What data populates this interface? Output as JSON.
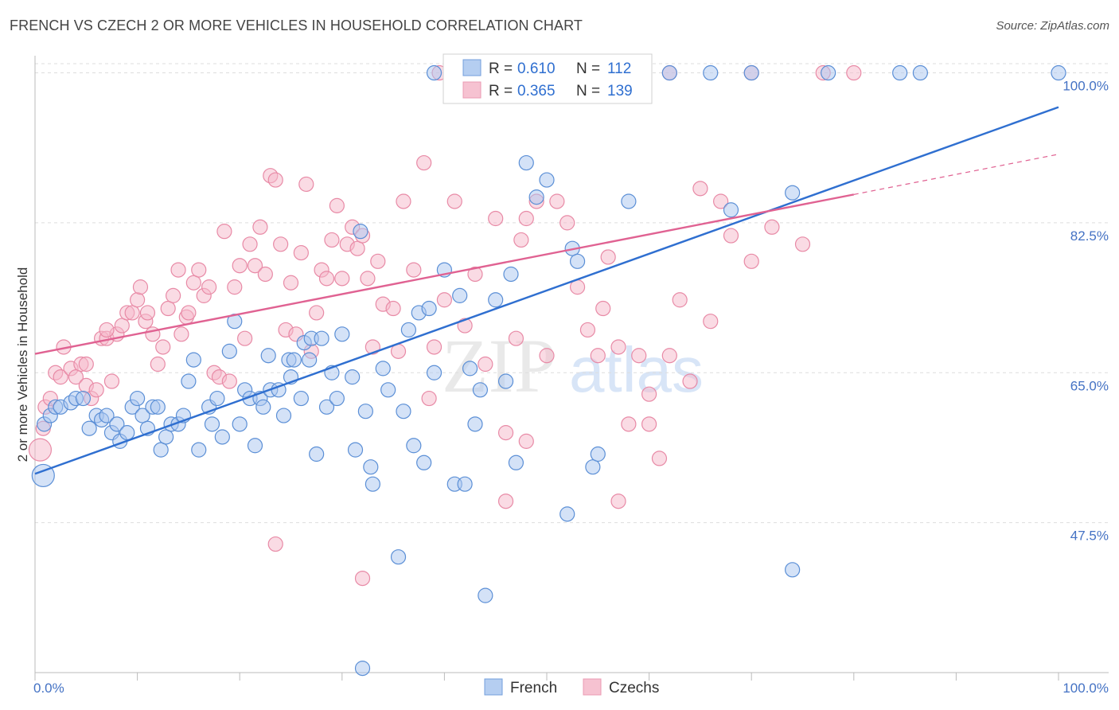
{
  "title": "FRENCH VS CZECH 2 OR MORE VEHICLES IN HOUSEHOLD CORRELATION CHART",
  "source": "Source: ZipAtlas.com",
  "watermark": {
    "zip": "ZIP",
    "atlas": "atlas"
  },
  "colors": {
    "french_fill": "#a9c6ef",
    "french_stroke": "#5b8fd6",
    "french_line": "#2f6fd0",
    "czech_fill": "#f5b8c9",
    "czech_stroke": "#e88aa6",
    "czech_line": "#e06292",
    "grid": "#dddddd",
    "axis_label": "#4472c4"
  },
  "legend_top": [
    {
      "r_label": "R = ",
      "r_value": "0.610",
      "n_label": "N = ",
      "n_value": "112",
      "series": "French"
    },
    {
      "r_label": "R = ",
      "r_value": "0.365",
      "n_label": "N = ",
      "n_value": "139",
      "series": "Czechs"
    }
  ],
  "chart_data": {
    "type": "scatter",
    "title": "FRENCH VS CZECH 2 OR MORE VEHICLES IN HOUSEHOLD CORRELATION CHART",
    "xlabel": "",
    "ylabel": "2 or more Vehicles in Household",
    "xlim": [
      0,
      100
    ],
    "ylim": [
      30,
      102
    ],
    "x_tick_labels": [
      "0.0%",
      "100.0%"
    ],
    "y_ticks": [
      47.5,
      65.0,
      82.5,
      100.0
    ],
    "y_tick_labels": [
      "47.5%",
      "65.0%",
      "82.5%",
      "100.0%"
    ],
    "grid": "horizontal dashed",
    "legend_placement": "bottom-center",
    "series": [
      {
        "name": "French",
        "trend": {
          "x": [
            0,
            100
          ],
          "y": [
            53.2,
            96.0
          ]
        },
        "points": [
          [
            0.8,
            53
          ],
          [
            0.9,
            59
          ],
          [
            1.5,
            60
          ],
          [
            2,
            61
          ],
          [
            2.5,
            61
          ],
          [
            3.5,
            61.5
          ],
          [
            4,
            62
          ],
          [
            4.7,
            62
          ],
          [
            5.3,
            58.5
          ],
          [
            6,
            60
          ],
          [
            6.5,
            59.5
          ],
          [
            7,
            60
          ],
          [
            7.5,
            58
          ],
          [
            8,
            59
          ],
          [
            8.3,
            57
          ],
          [
            9,
            58
          ],
          [
            9.5,
            61
          ],
          [
            10,
            62
          ],
          [
            10.5,
            60
          ],
          [
            11,
            58.5
          ],
          [
            11.5,
            61
          ],
          [
            12,
            61
          ],
          [
            12.3,
            56
          ],
          [
            12.8,
            57.5
          ],
          [
            13.3,
            59
          ],
          [
            14,
            59
          ],
          [
            14.5,
            60
          ],
          [
            15,
            64
          ],
          [
            15.5,
            66.5
          ],
          [
            16,
            56
          ],
          [
            17,
            61
          ],
          [
            17.3,
            59
          ],
          [
            17.8,
            62
          ],
          [
            18.3,
            57.5
          ],
          [
            19,
            67.5
          ],
          [
            19.5,
            71
          ],
          [
            20,
            59
          ],
          [
            20.5,
            63
          ],
          [
            21,
            62
          ],
          [
            21.5,
            56.5
          ],
          [
            22,
            62
          ],
          [
            22.3,
            61
          ],
          [
            22.8,
            67
          ],
          [
            23,
            63
          ],
          [
            23.8,
            63
          ],
          [
            24.3,
            60
          ],
          [
            24.8,
            66.5
          ],
          [
            25,
            64.5
          ],
          [
            25.3,
            66.5
          ],
          [
            26,
            62
          ],
          [
            26.3,
            68.5
          ],
          [
            26.8,
            66.5
          ],
          [
            27,
            69
          ],
          [
            27.5,
            55.5
          ],
          [
            28,
            69
          ],
          [
            28.5,
            61
          ],
          [
            29,
            65
          ],
          [
            29.5,
            62
          ],
          [
            30,
            69.5
          ],
          [
            31,
            64.5
          ],
          [
            31.3,
            56
          ],
          [
            31.8,
            81.5
          ],
          [
            32.3,
            60.5
          ],
          [
            32.8,
            54
          ],
          [
            33,
            52
          ],
          [
            34,
            65.5
          ],
          [
            34.5,
            63
          ],
          [
            35.5,
            43.5
          ],
          [
            36,
            60.5
          ],
          [
            36.5,
            70
          ],
          [
            37,
            56.5
          ],
          [
            37.5,
            72
          ],
          [
            38,
            54.5
          ],
          [
            38.5,
            72.5
          ],
          [
            39,
            65
          ],
          [
            40,
            77
          ],
          [
            41,
            52
          ],
          [
            41.5,
            74
          ],
          [
            42,
            52
          ],
          [
            42.5,
            65.5
          ],
          [
            43,
            59
          ],
          [
            43.5,
            63
          ],
          [
            44,
            39
          ],
          [
            45,
            73.5
          ],
          [
            46,
            64
          ],
          [
            46.5,
            76.5
          ],
          [
            47,
            54.5
          ],
          [
            48,
            89.5
          ],
          [
            49,
            85.5
          ],
          [
            50,
            87.5
          ],
          [
            52,
            48.5
          ],
          [
            52.5,
            79.5
          ],
          [
            53,
            78
          ],
          [
            54.5,
            54
          ],
          [
            55,
            55.5
          ],
          [
            58,
            85
          ],
          [
            68,
            84
          ],
          [
            74,
            42
          ],
          [
            74,
            86
          ],
          [
            39,
            100
          ],
          [
            46,
            100
          ],
          [
            47,
            100
          ],
          [
            62,
            100
          ],
          [
            66,
            100
          ],
          [
            70,
            100
          ],
          [
            77.5,
            100
          ],
          [
            84.5,
            100
          ],
          [
            86.5,
            100
          ],
          [
            100,
            100
          ],
          [
            32,
            30.5
          ],
          [
            45,
            100
          ]
        ]
      },
      {
        "name": "Czechs",
        "trend": {
          "x": [
            0,
            80
          ],
          "y": [
            67.2,
            85.8
          ]
        },
        "trend_dashed": {
          "x": [
            80,
            100
          ],
          "y": [
            85.8,
            90.5
          ]
        },
        "points": [
          [
            0.5,
            56
          ],
          [
            0.8,
            58.5
          ],
          [
            1,
            61
          ],
          [
            1.5,
            62
          ],
          [
            2,
            65
          ],
          [
            2.5,
            64.5
          ],
          [
            2.8,
            68
          ],
          [
            3.5,
            65.5
          ],
          [
            4,
            64.5
          ],
          [
            4.5,
            66
          ],
          [
            5,
            63.5
          ],
          [
            5.5,
            62
          ],
          [
            6,
            63
          ],
          [
            6.5,
            69
          ],
          [
            7,
            69
          ],
          [
            7.5,
            64
          ],
          [
            8,
            69.5
          ],
          [
            8.5,
            70.5
          ],
          [
            9,
            72
          ],
          [
            9.5,
            72
          ],
          [
            10,
            73.5
          ],
          [
            10.3,
            75
          ],
          [
            10.8,
            71
          ],
          [
            11,
            72
          ],
          [
            11.5,
            69.5
          ],
          [
            12,
            66
          ],
          [
            12.5,
            68
          ],
          [
            13,
            72.5
          ],
          [
            13.5,
            74
          ],
          [
            14,
            77
          ],
          [
            14.3,
            69.5
          ],
          [
            14.8,
            71.5
          ],
          [
            15,
            72
          ],
          [
            15.5,
            75.5
          ],
          [
            16,
            77
          ],
          [
            16.5,
            74
          ],
          [
            17,
            75
          ],
          [
            17.5,
            65
          ],
          [
            18,
            64.5
          ],
          [
            18.5,
            81.5
          ],
          [
            19,
            64
          ],
          [
            19.5,
            75
          ],
          [
            20,
            77.5
          ],
          [
            20.5,
            69
          ],
          [
            21,
            80
          ],
          [
            21.5,
            77.5
          ],
          [
            22,
            82
          ],
          [
            22.5,
            76.5
          ],
          [
            23,
            88
          ],
          [
            23.5,
            87.5
          ],
          [
            24,
            80
          ],
          [
            24.5,
            70
          ],
          [
            25,
            75.5
          ],
          [
            25.5,
            69.5
          ],
          [
            26,
            79
          ],
          [
            26.5,
            87
          ],
          [
            27,
            67.5
          ],
          [
            27.5,
            72
          ],
          [
            28,
            77
          ],
          [
            28.5,
            76
          ],
          [
            29,
            80.5
          ],
          [
            29.5,
            84.5
          ],
          [
            30,
            76
          ],
          [
            30.5,
            80
          ],
          [
            31,
            82
          ],
          [
            31.5,
            79.5
          ],
          [
            32,
            81
          ],
          [
            32.5,
            76
          ],
          [
            33,
            68
          ],
          [
            33.5,
            78
          ],
          [
            34,
            73
          ],
          [
            35,
            72.5
          ],
          [
            35.5,
            67.5
          ],
          [
            36,
            85
          ],
          [
            37,
            77
          ],
          [
            38,
            89.5
          ],
          [
            38.5,
            62
          ],
          [
            39,
            68
          ],
          [
            40,
            73.5
          ],
          [
            41,
            85
          ],
          [
            42,
            70.5
          ],
          [
            43,
            76.5
          ],
          [
            44,
            66
          ],
          [
            45,
            83
          ],
          [
            46,
            58
          ],
          [
            47,
            69
          ],
          [
            47.5,
            80.5
          ],
          [
            48,
            83
          ],
          [
            49,
            85
          ],
          [
            50,
            67
          ],
          [
            51,
            85
          ],
          [
            52,
            82.5
          ],
          [
            53,
            75
          ],
          [
            54,
            70
          ],
          [
            55,
            67
          ],
          [
            55.5,
            72.5
          ],
          [
            56,
            78.5
          ],
          [
            57,
            68
          ],
          [
            58,
            59
          ],
          [
            59,
            67
          ],
          [
            60,
            62.5
          ],
          [
            61,
            55
          ],
          [
            62,
            67
          ],
          [
            63,
            73.5
          ],
          [
            64,
            64
          ],
          [
            65,
            86.5
          ],
          [
            66,
            71
          ],
          [
            67,
            85
          ],
          [
            68,
            81
          ],
          [
            70,
            78
          ],
          [
            72,
            82
          ],
          [
            75,
            80
          ],
          [
            23.5,
            45
          ],
          [
            39.5,
            100
          ],
          [
            52,
            100
          ],
          [
            57,
            100
          ],
          [
            62,
            100
          ],
          [
            70,
            100
          ],
          [
            77,
            100
          ],
          [
            80,
            100
          ],
          [
            32,
            41
          ],
          [
            46,
            50
          ],
          [
            57,
            50
          ],
          [
            48,
            57
          ],
          [
            60,
            59
          ],
          [
            5,
            66
          ],
          [
            7,
            70
          ]
        ]
      }
    ]
  },
  "legend_bottom": [
    {
      "label": "French"
    },
    {
      "label": "Czechs"
    }
  ]
}
